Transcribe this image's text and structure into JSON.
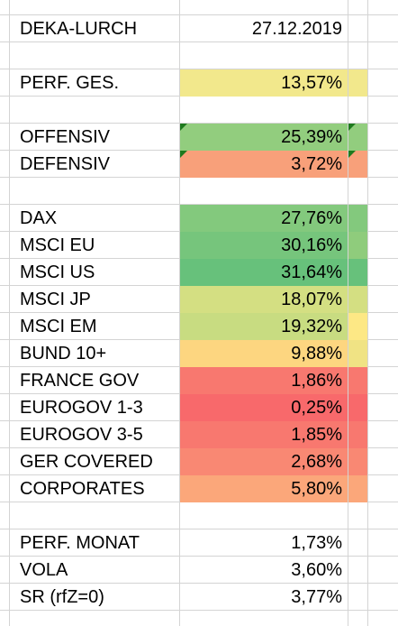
{
  "header": {
    "fund_name": "DEKA-LURCH",
    "date": "27.12.2019"
  },
  "rows": [
    {
      "label": "PERF. GES.",
      "value": "13,57%",
      "fill": "#f2e88c",
      "fill_c": "#f2e88c"
    },
    {
      "label": "OFFENSIV",
      "value": "25,39%",
      "fill": "#92cd7e",
      "fill_c": "#92cd7e",
      "comment": true
    },
    {
      "label": "DEFENSIV",
      "value": "3,72%",
      "fill": "#f8a07a",
      "fill_c": "#f8a07a",
      "comment": true
    },
    {
      "label": "DAX",
      "value": "27,76%",
      "fill": "#83c97d",
      "fill_c": "#83c97d"
    },
    {
      "label": "MSCI EU",
      "value": "30,16%",
      "fill": "#76c57c",
      "fill_c": "#8fcc7c"
    },
    {
      "label": "MSCI US",
      "value": "31,64%",
      "fill": "#67c17b",
      "fill_c": "#67c17b"
    },
    {
      "label": "MSCI JP",
      "value": "18,07%",
      "fill": "#d4df82",
      "fill_c": "#d4df82"
    },
    {
      "label": "MSCI EM",
      "value": "19,32%",
      "fill": "#c8dc81",
      "fill_c": "#fde885"
    },
    {
      "label": "BUND 10+",
      "value": "9,88%",
      "fill": "#fdd680",
      "fill_c": "#f0e384"
    },
    {
      "label": "FRANCE GOV",
      "value": "1,86%",
      "fill": "#f8786f",
      "fill_c": "#f8786f"
    },
    {
      "label": "EUROGOV 1-3",
      "value": "0,25%",
      "fill": "#f8696b",
      "fill_c": "#f8696b"
    },
    {
      "label": "EUROGOV 3-5",
      "value": "1,85%",
      "fill": "#f8786f",
      "fill_c": "#f8786f"
    },
    {
      "label": "GER COVERED",
      "value": "2,68%",
      "fill": "#f98873",
      "fill_c": "#f98873"
    },
    {
      "label": "CORPORATES",
      "value": "5,80%",
      "fill": "#fba77a",
      "fill_c": "#fba77a"
    },
    {
      "label": "PERF. MONAT",
      "value": "1,73%"
    },
    {
      "label": "VOLA",
      "value": "3,60%"
    },
    {
      "label": "SR (rfZ=0)",
      "value": "3,77%"
    }
  ],
  "colors": {
    "gridline": "#d4d4d4",
    "comment_marker": "#1e7a1e"
  }
}
